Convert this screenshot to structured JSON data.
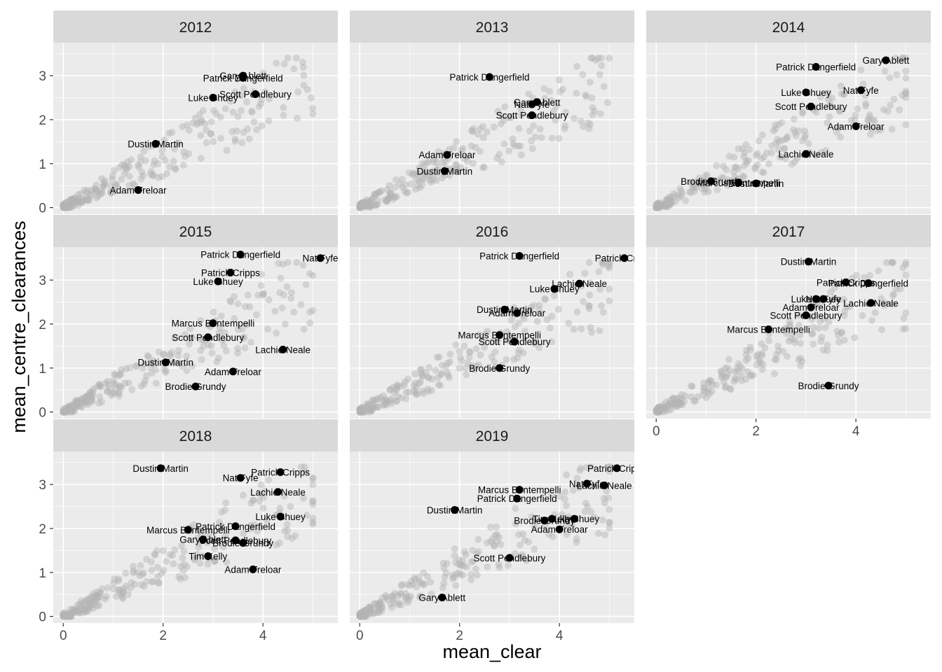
{
  "chart_data": {
    "type": "scatter",
    "xlabel": "mean_clear",
    "ylabel": "mean_centre_clearances",
    "x_ticks": [
      "0",
      "2",
      "4"
    ],
    "y_ticks": [
      "0",
      "1",
      "2",
      "3"
    ],
    "xlim": [
      -0.2,
      5.5
    ],
    "ylim": [
      -0.15,
      3.75
    ],
    "grid": true,
    "colors": {
      "panel_bg": "#ebebeb",
      "strip_bg": "#d9d9d9",
      "grid": "#ffffff",
      "background_points": "#b3b3b3",
      "highlight_points": "#000000"
    },
    "panels": [
      {
        "title": "2012",
        "players": [
          {
            "name": "Gary Ablett",
            "x": 3.6,
            "y": 3.0
          },
          {
            "name": "Patrick Dangerfield",
            "x": 3.6,
            "y": 2.95
          },
          {
            "name": "Scott Pendlebury",
            "x": 3.85,
            "y": 2.58
          },
          {
            "name": "Luke Shuey",
            "x": 3.0,
            "y": 2.5
          },
          {
            "name": "Dustin Martin",
            "x": 1.85,
            "y": 1.45
          },
          {
            "name": "Adam Treloar",
            "x": 1.5,
            "y": 0.4
          }
        ]
      },
      {
        "title": "2013",
        "players": [
          {
            "name": "Patrick Dangerfield",
            "x": 2.6,
            "y": 2.97
          },
          {
            "name": "Gary Ablett",
            "x": 3.55,
            "y": 2.4
          },
          {
            "name": "Nat Fyfe",
            "x": 3.45,
            "y": 2.35
          },
          {
            "name": "Scott Pendlebury",
            "x": 3.45,
            "y": 2.1
          },
          {
            "name": "Adam Treloar",
            "x": 1.75,
            "y": 1.2
          },
          {
            "name": "Dustin Martin",
            "x": 1.7,
            "y": 0.83
          }
        ]
      },
      {
        "title": "2014",
        "players": [
          {
            "name": "Gary Ablett",
            "x": 4.6,
            "y": 3.35
          },
          {
            "name": "Patrick Dangerfield",
            "x": 3.2,
            "y": 3.2
          },
          {
            "name": "Nat Fyfe",
            "x": 4.1,
            "y": 2.67
          },
          {
            "name": "Luke Shuey",
            "x": 3.0,
            "y": 2.62
          },
          {
            "name": "Scott Pendlebury",
            "x": 3.1,
            "y": 2.3
          },
          {
            "name": "Adam Treloar",
            "x": 4.0,
            "y": 1.85
          },
          {
            "name": "Lachie Neale",
            "x": 3.0,
            "y": 1.22
          },
          {
            "name": "Brodie Grundy",
            "x": 1.1,
            "y": 0.6
          },
          {
            "name": "Marcus Bontempelli",
            "x": 1.65,
            "y": 0.57
          },
          {
            "name": "Dustin Martin",
            "x": 2.0,
            "y": 0.55
          }
        ]
      },
      {
        "title": "2015",
        "players": [
          {
            "name": "Patrick Dangerfield",
            "x": 3.55,
            "y": 3.58
          },
          {
            "name": "Nat Fyfe",
            "x": 5.15,
            "y": 3.5
          },
          {
            "name": "Patrick Cripps",
            "x": 3.35,
            "y": 3.17
          },
          {
            "name": "Luke Shuey",
            "x": 3.1,
            "y": 2.97
          },
          {
            "name": "Marcus Bontempelli",
            "x": 3.0,
            "y": 2.02
          },
          {
            "name": "Scott Pendlebury",
            "x": 2.9,
            "y": 1.7
          },
          {
            "name": "Lachie Neale",
            "x": 4.4,
            "y": 1.42
          },
          {
            "name": "Dustin Martin",
            "x": 2.05,
            "y": 1.13
          },
          {
            "name": "Adam Treloar",
            "x": 3.4,
            "y": 0.92
          },
          {
            "name": "Brodie Grundy",
            "x": 2.65,
            "y": 0.58
          }
        ]
      },
      {
        "title": "2016",
        "players": [
          {
            "name": "Patrick Dangerfield",
            "x": 3.2,
            "y": 3.55
          },
          {
            "name": "Patrick Cripps",
            "x": 5.3,
            "y": 3.5
          },
          {
            "name": "Lachie Neale",
            "x": 4.4,
            "y": 2.92
          },
          {
            "name": "Luke Shuey",
            "x": 3.9,
            "y": 2.8
          },
          {
            "name": "Dustin Martin",
            "x": 2.9,
            "y": 2.33
          },
          {
            "name": "Adam Treloar",
            "x": 3.15,
            "y": 2.25
          },
          {
            "name": "Marcus Bontempelli",
            "x": 2.8,
            "y": 1.75
          },
          {
            "name": "Scott Pendlebury",
            "x": 3.1,
            "y": 1.6
          },
          {
            "name": "Brodie Grundy",
            "x": 2.8,
            "y": 1.0
          }
        ]
      },
      {
        "title": "2017",
        "players": [
          {
            "name": "Dustin Martin",
            "x": 3.05,
            "y": 3.42
          },
          {
            "name": "Patrick Cripps",
            "x": 3.8,
            "y": 2.95
          },
          {
            "name": "Patrick Dangerfield",
            "x": 4.25,
            "y": 2.93
          },
          {
            "name": "Luke Shuey",
            "x": 3.2,
            "y": 2.57
          },
          {
            "name": "Nat Fyfe",
            "x": 3.35,
            "y": 2.57
          },
          {
            "name": "Lachie Neale",
            "x": 4.3,
            "y": 2.48
          },
          {
            "name": "Adam Treloar",
            "x": 3.1,
            "y": 2.38
          },
          {
            "name": "Scott Pendlebury",
            "x": 3.0,
            "y": 2.2
          },
          {
            "name": "Marcus Bontempelli",
            "x": 2.25,
            "y": 1.88
          },
          {
            "name": "Brodie Grundy",
            "x": 3.45,
            "y": 0.6
          }
        ]
      },
      {
        "title": "2018",
        "players": [
          {
            "name": "Dustin Martin",
            "x": 1.95,
            "y": 3.37
          },
          {
            "name": "Patrick Cripps",
            "x": 4.35,
            "y": 3.28
          },
          {
            "name": "Nat Fyfe",
            "x": 3.55,
            "y": 3.15
          },
          {
            "name": "Lachie Neale",
            "x": 4.3,
            "y": 2.83
          },
          {
            "name": "Luke Shuey",
            "x": 4.35,
            "y": 2.27
          },
          {
            "name": "Patrick Dangerfield",
            "x": 3.45,
            "y": 2.05
          },
          {
            "name": "Marcus Bontempelli",
            "x": 2.5,
            "y": 1.97
          },
          {
            "name": "Gary Ablett",
            "x": 2.8,
            "y": 1.75
          },
          {
            "name": "Scott Pendlebury",
            "x": 3.45,
            "y": 1.73
          },
          {
            "name": "Brodie Grundy",
            "x": 3.6,
            "y": 1.67
          },
          {
            "name": "Tim Kelly",
            "x": 2.9,
            "y": 1.37
          },
          {
            "name": "Adam Treloar",
            "x": 3.8,
            "y": 1.07
          }
        ]
      },
      {
        "title": "2019",
        "players": [
          {
            "name": "Patrick Cripps",
            "x": 5.15,
            "y": 3.37
          },
          {
            "name": "Nat Fyfe",
            "x": 4.55,
            "y": 3.02
          },
          {
            "name": "Lachie Neale",
            "x": 4.9,
            "y": 2.98
          },
          {
            "name": "Marcus Bontempelli",
            "x": 3.2,
            "y": 2.88
          },
          {
            "name": "Patrick Dangerfield",
            "x": 3.15,
            "y": 2.68
          },
          {
            "name": "Dustin Martin",
            "x": 1.9,
            "y": 2.42
          },
          {
            "name": "Brodie Grundy",
            "x": 3.7,
            "y": 2.18
          },
          {
            "name": "Tim Kelly",
            "x": 3.85,
            "y": 2.22
          },
          {
            "name": "Luke Shuey",
            "x": 4.3,
            "y": 2.22
          },
          {
            "name": "Adam Treloar",
            "x": 4.0,
            "y": 1.98
          },
          {
            "name": "Scott Pendlebury",
            "x": 3.0,
            "y": 1.33
          },
          {
            "name": "Gary Ablett",
            "x": 1.65,
            "y": 0.43
          }
        ]
      }
    ]
  }
}
